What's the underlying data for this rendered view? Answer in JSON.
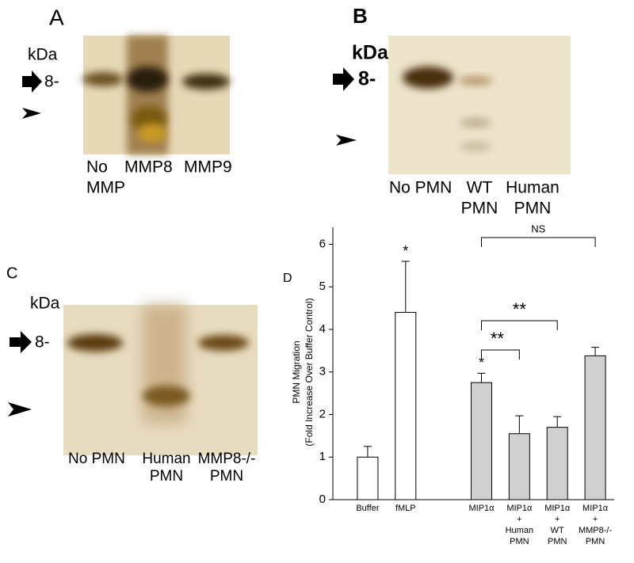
{
  "panels": {
    "a": {
      "label": "A",
      "unit": "kDa",
      "marker": "8-",
      "lanes": [
        [
          "No",
          "MMP"
        ],
        [
          "MMP8"
        ],
        [
          "MMP9"
        ]
      ]
    },
    "b": {
      "label": "B",
      "unit": "kDa",
      "marker": "8-",
      "lanes": [
        [
          "No PMN"
        ],
        [
          "WT",
          "PMN"
        ],
        [
          "Human",
          "PMN"
        ]
      ]
    },
    "c": {
      "label": "C",
      "unit": "kDa",
      "marker": "8-",
      "lanes": [
        [
          "No PMN"
        ],
        [
          "Human",
          "PMN"
        ],
        [
          "MMP8-/-",
          "PMN"
        ]
      ]
    }
  },
  "chart_data": {
    "type": "bar",
    "panel_label": "D",
    "y_label": [
      "PMN Migration",
      "(Fold Increase Over Buffer Control)"
    ],
    "categories": [
      [
        "Buffer"
      ],
      [
        "fMLP"
      ],
      null,
      [
        "MIP1α"
      ],
      [
        "MIP1α",
        "+",
        "Human",
        "PMN"
      ],
      [
        "MIP1α",
        "+",
        "WT",
        "PMN"
      ],
      [
        "MIP1α",
        "+",
        "MMP8-/-",
        "PMN"
      ]
    ],
    "values": [
      1.0,
      4.4,
      null,
      2.75,
      1.55,
      1.7,
      3.38
    ],
    "errors": [
      0.25,
      1.2,
      null,
      0.22,
      0.42,
      0.25,
      0.2
    ],
    "colors": [
      "#ffffff",
      "#ffffff",
      null,
      "#d0d0d0",
      "#d0d0d0",
      "#d0d0d0",
      "#d0d0d0"
    ],
    "star_labels": [
      null,
      "*",
      null,
      "*",
      null,
      null,
      null
    ],
    "brackets": [
      {
        "from": 3,
        "to": 4,
        "label": "**"
      },
      {
        "from": 3,
        "to": 5,
        "label": "**"
      },
      {
        "from": 3,
        "to": 6,
        "label": "NS"
      }
    ],
    "ylim": [
      0,
      6.4
    ],
    "yticks": [
      0,
      1,
      2,
      3,
      4,
      5,
      6
    ]
  }
}
